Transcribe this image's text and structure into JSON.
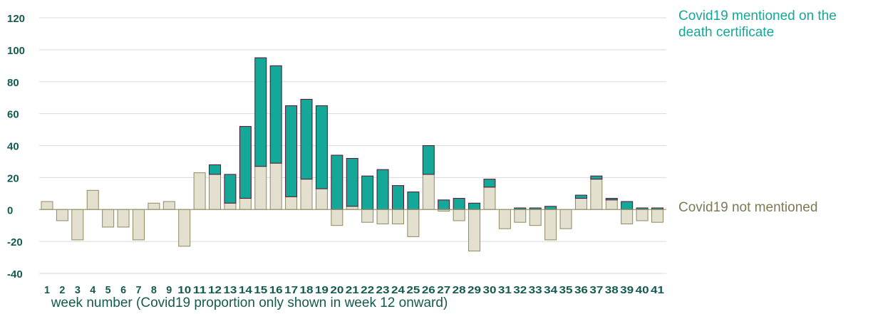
{
  "colors": {
    "covid_fill": "#13a898",
    "covid_stroke": "#5a1030",
    "non_fill": "#e4e0d0",
    "non_stroke": "#8e8a5c",
    "axis_text": "#145a50",
    "grid": "#d9d9d9",
    "zero_line": "#9a9670",
    "covid_legend_text": "#13a898",
    "non_legend_text": "#7d7955",
    "xlabel_text": "#145a50"
  },
  "chart_data": {
    "type": "bar",
    "stacked": true,
    "categories": [
      "1",
      "2",
      "3",
      "4",
      "5",
      "6",
      "7",
      "8",
      "9",
      "10",
      "11",
      "12",
      "13",
      "14",
      "15",
      "16",
      "17",
      "18",
      "19",
      "20",
      "21",
      "22",
      "23",
      "24",
      "25",
      "26",
      "27",
      "28",
      "29",
      "30",
      "31",
      "32",
      "33",
      "34",
      "35",
      "36",
      "37",
      "38",
      "39",
      "40",
      "41"
    ],
    "series": [
      {
        "name": "Covid19 not mentioned",
        "values": [
          5,
          -7,
          -19,
          12,
          -11,
          -11,
          -19,
          4,
          5,
          -23,
          23,
          22,
          4,
          7,
          27,
          29,
          8,
          19,
          13,
          -10,
          2,
          -8,
          -9,
          -9,
          -17,
          22,
          -1,
          -7,
          -26,
          14,
          -12,
          -8,
          -10,
          -19,
          -12,
          7,
          19,
          6,
          -9,
          -7,
          -8
        ]
      },
      {
        "name": "Covid19 mentioned on the death certificate",
        "values": [
          0,
          0,
          0,
          0,
          0,
          0,
          0,
          0,
          0,
          0,
          0,
          6,
          18,
          45,
          68,
          61,
          57,
          50,
          52,
          34,
          30,
          21,
          25,
          15,
          11,
          18,
          6,
          7,
          4,
          5,
          0,
          1,
          1,
          2,
          0,
          2,
          2,
          1,
          5,
          1,
          1
        ]
      }
    ],
    "xlabel": "week number (Covid19 proportion only shown in week 12 onward)",
    "ylabel": "",
    "ylim": [
      -40,
      120
    ],
    "yticks": [
      "120",
      "100",
      "80",
      "60",
      "40",
      "20",
      "0",
      "-20",
      "-40"
    ],
    "grid": true,
    "legend_placement": "right"
  }
}
